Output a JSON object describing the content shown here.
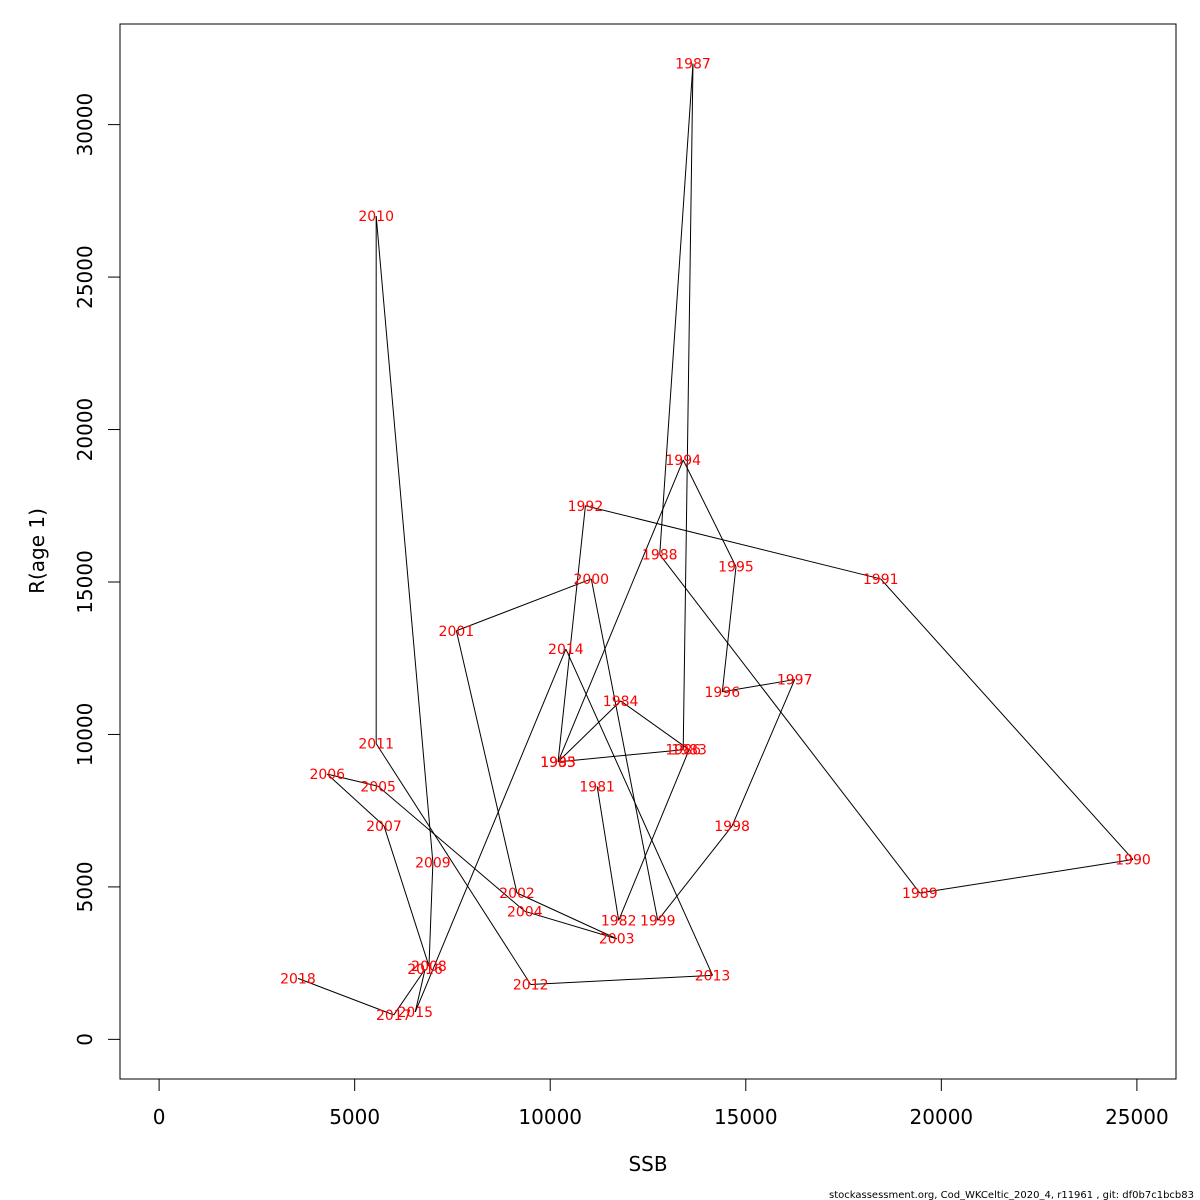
{
  "footer": "stockassessment.org, Cod_WKCeltic_2020_4, r11961 , git: df0b7c1bcb83",
  "colors": {
    "label": "#ff0000",
    "line": "#000000",
    "frame": "#000000",
    "background": "#ffffff"
  },
  "chart_data": {
    "type": "scatter",
    "title": "",
    "xlabel": "SSB",
    "ylabel": "R(age 1)",
    "xlim": [
      -1000,
      26000
    ],
    "ylim": [
      -1300,
      33300
    ],
    "xticks": [
      0,
      5000,
      10000,
      15000,
      20000,
      25000
    ],
    "xtick_labels": [
      "0",
      "5000",
      "10000",
      "15000",
      "20000",
      "25000"
    ],
    "yticks": [
      0,
      5000,
      10000,
      15000,
      20000,
      25000,
      30000
    ],
    "ytick_labels": [
      "0",
      "5000",
      "10000",
      "15000",
      "20000",
      "25000",
      "30000"
    ],
    "grid": false,
    "connected": true,
    "series": [
      {
        "points": [
          {
            "year": "1981",
            "x": 11200,
            "y": 8300
          },
          {
            "year": "1982",
            "x": 11750,
            "y": 3900
          },
          {
            "year": "1983",
            "x": 13550,
            "y": 9500
          },
          {
            "year": "1984",
            "x": 11800,
            "y": 11100
          },
          {
            "year": "1985",
            "x": 10200,
            "y": 9100
          },
          {
            "year": "1986",
            "x": 13400,
            "y": 9500
          },
          {
            "year": "1987",
            "x": 13650,
            "y": 32000
          },
          {
            "year": "1988",
            "x": 12800,
            "y": 15900
          },
          {
            "year": "1989",
            "x": 19450,
            "y": 4800
          },
          {
            "year": "1990",
            "x": 24900,
            "y": 5900
          },
          {
            "year": "1991",
            "x": 18450,
            "y": 15100
          },
          {
            "year": "1992",
            "x": 10900,
            "y": 17500
          },
          {
            "year": "1993",
            "x": 10200,
            "y": 9100
          },
          {
            "year": "1994",
            "x": 13400,
            "y": 19000
          },
          {
            "year": "1995",
            "x": 14750,
            "y": 15500
          },
          {
            "year": "1996",
            "x": 14400,
            "y": 11400
          },
          {
            "year": "1997",
            "x": 16250,
            "y": 11800
          },
          {
            "year": "1998",
            "x": 14650,
            "y": 7000
          },
          {
            "year": "1999",
            "x": 12750,
            "y": 3900
          },
          {
            "year": "2000",
            "x": 11050,
            "y": 15100
          },
          {
            "year": "2001",
            "x": 7600,
            "y": 13400
          },
          {
            "year": "2002",
            "x": 9150,
            "y": 4800
          },
          {
            "year": "2003",
            "x": 11700,
            "y": 3300
          },
          {
            "year": "2004",
            "x": 9350,
            "y": 4200
          },
          {
            "year": "2005",
            "x": 5600,
            "y": 8300
          },
          {
            "year": "2006",
            "x": 4300,
            "y": 8700
          },
          {
            "year": "2007",
            "x": 5750,
            "y": 7000
          },
          {
            "year": "2008",
            "x": 6900,
            "y": 2400
          },
          {
            "year": "2009",
            "x": 7000,
            "y": 5800
          },
          {
            "year": "2010",
            "x": 5550,
            "y": 27000
          },
          {
            "year": "2011",
            "x": 5550,
            "y": 9700
          },
          {
            "year": "2012",
            "x": 9500,
            "y": 1800
          },
          {
            "year": "2013",
            "x": 14150,
            "y": 2100
          },
          {
            "year": "2014",
            "x": 10400,
            "y": 12800
          },
          {
            "year": "2015",
            "x": 6550,
            "y": 900
          },
          {
            "year": "2016",
            "x": 6800,
            "y": 2300
          },
          {
            "year": "2017",
            "x": 6000,
            "y": 800
          },
          {
            "year": "2018",
            "x": 3550,
            "y": 2000
          }
        ]
      }
    ]
  }
}
